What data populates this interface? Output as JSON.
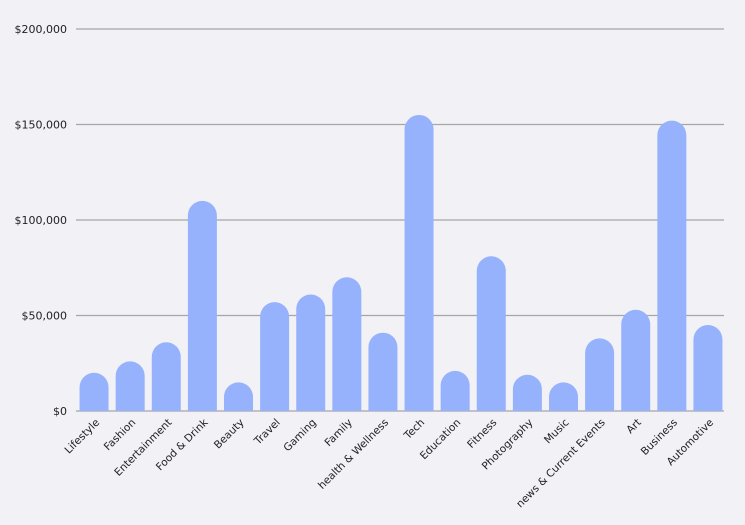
{
  "colors": {
    "background": "#f1f1f6",
    "bar": "#97b2fd",
    "gridline": "#a6a6a6",
    "text": "#222222"
  },
  "chart_data": {
    "type": "bar",
    "title": "",
    "xlabel": "",
    "ylabel": "",
    "ylim": [
      0,
      200000
    ],
    "yticks": [
      0,
      50000,
      100000,
      150000,
      200000
    ],
    "ytick_labels": [
      "$0",
      "$50,000",
      "$100,000",
      "$150,000",
      "$200,000"
    ],
    "grid": true,
    "legend": "none",
    "categories": [
      "Lifestyle",
      "Fashion",
      "Entertainment",
      "Food & Drink",
      "Beauty",
      "Travel",
      "Gaming",
      "Family",
      "health & Wellness",
      "Tech",
      "Education",
      "Fitness",
      "Photography",
      "Music",
      "news & Current Events",
      "Art",
      "Business",
      "Automotive"
    ],
    "values": [
      20000,
      26000,
      36000,
      110000,
      15000,
      57000,
      61000,
      70000,
      41000,
      155000,
      21000,
      81000,
      19000,
      15000,
      38000,
      53000,
      152000,
      45000
    ]
  }
}
